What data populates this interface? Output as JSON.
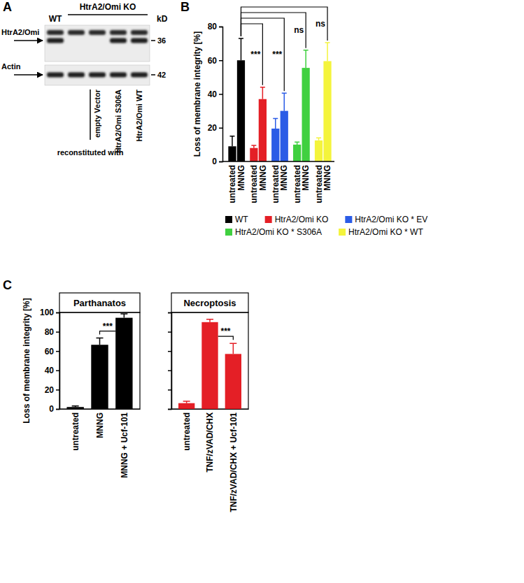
{
  "blot": {
    "panel_label": "A",
    "groups": [
      "WT",
      "HtrA2/Omi KO"
    ],
    "unit": "kD",
    "lanes": [
      {
        "group": 0,
        "label": null
      },
      {
        "group": 1,
        "label": null
      },
      {
        "group": 1,
        "label": "empty Vector"
      },
      {
        "group": 1,
        "label": "HtrA2/Omi S306A"
      },
      {
        "group": 1,
        "label": "HtrA2/Omi WT"
      }
    ],
    "lane_label_title": "reconstituted with",
    "rows": [
      {
        "label": "HtrA2/Omi",
        "marker": 36,
        "present": [
          true,
          false,
          false,
          true,
          true
        ]
      },
      {
        "label": "Actin",
        "marker": 42,
        "present": [
          true,
          true,
          true,
          true,
          true
        ]
      }
    ]
  },
  "chart_data": [
    {
      "type": "bar",
      "panel_label": "B",
      "ylabel": "Loss of membrane integrity [%]",
      "categories": [
        "untreated",
        "MNNG"
      ],
      "series": [
        {
          "name": "WT",
          "color": "#000000",
          "values": [
            9,
            60
          ],
          "errors": [
            6,
            13
          ]
        },
        {
          "name": "HtrA2/Omi KO",
          "color": "#e41f26",
          "values": [
            8,
            37
          ],
          "errors": [
            1.5,
            7
          ]
        },
        {
          "name": "HtrA2/Omi KO * EV",
          "color": "#2b5ce6",
          "values": [
            19.5,
            30
          ],
          "errors": [
            6,
            10.5
          ]
        },
        {
          "name": "HtrA2/Omi KO * S306A",
          "color": "#40d040",
          "values": [
            10,
            55.5
          ],
          "errors": [
            1.5,
            10.5
          ]
        },
        {
          "name": "HtrA2/Omi KO * WT",
          "color": "#f4f43c",
          "values": [
            12.5,
            59.5
          ],
          "errors": [
            1.5,
            11
          ]
        }
      ],
      "ylim": [
        0,
        80
      ],
      "yticks": [
        0,
        20,
        40,
        60,
        80
      ],
      "legend": "bottom",
      "annotations": [
        {
          "text": "***",
          "from": [
            0,
            1
          ],
          "to": [
            1,
            1
          ]
        },
        {
          "text": "***",
          "from": [
            0,
            1
          ],
          "to": [
            2,
            1
          ]
        },
        {
          "text": "ns",
          "from": [
            0,
            1
          ],
          "to": [
            3,
            1
          ]
        },
        {
          "text": "ns",
          "from": [
            0,
            1
          ],
          "to": [
            4,
            1
          ]
        }
      ]
    },
    {
      "type": "bar",
      "panel_label": "C",
      "title": "Parthanatos",
      "ylabel": "Loss of membrane integrity [%]",
      "categories": [
        "untreated",
        "MNNG",
        "MNNG + Ucf-101"
      ],
      "values": [
        2,
        66.5,
        94.5
      ],
      "errors": [
        1,
        7,
        4
      ],
      "color": "#000000",
      "ylim": [
        0,
        100
      ],
      "yticks": [
        0,
        20,
        40,
        60,
        80,
        100
      ],
      "annotations": [
        {
          "text": "***",
          "from": 1,
          "to": 2
        }
      ]
    },
    {
      "type": "bar",
      "title": "Necroptosis",
      "categories": [
        "untreated",
        "TNF/zVAD/CHX",
        "TNF/zVAD/CHX + Ucf-101"
      ],
      "values": [
        6,
        90,
        57
      ],
      "errors": [
        2,
        3,
        11
      ],
      "color": "#e41f26",
      "ylim": [
        0,
        100
      ],
      "yticks": [
        0,
        20,
        40,
        60,
        80,
        100
      ],
      "tick_labels": "x",
      "annotations": [
        {
          "text": "***",
          "from": 2,
          "to": 1
        }
      ]
    }
  ]
}
